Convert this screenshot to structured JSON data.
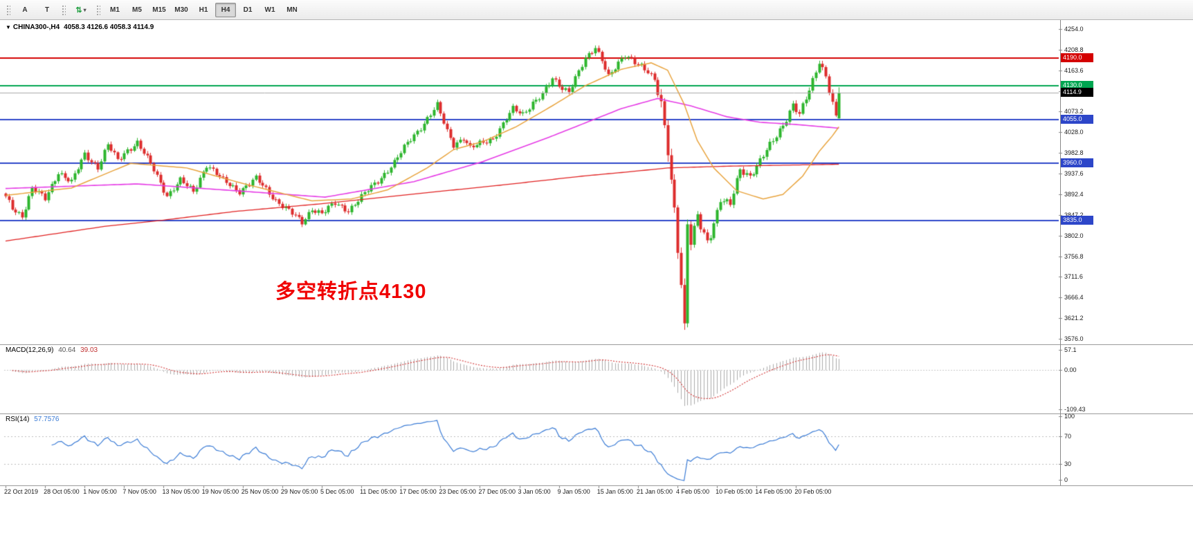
{
  "toolbar": {
    "tool_buttons": [
      {
        "label": "A"
      },
      {
        "label": "T"
      }
    ],
    "cycle_button": {
      "icon": "⇅",
      "caret": "▾"
    },
    "timeframes": [
      {
        "label": "M1",
        "active": false
      },
      {
        "label": "M5",
        "active": false
      },
      {
        "label": "M15",
        "active": false
      },
      {
        "label": "M30",
        "active": false
      },
      {
        "label": "H1",
        "active": false
      },
      {
        "label": "H4",
        "active": true
      },
      {
        "label": "D1",
        "active": false
      },
      {
        "label": "W1",
        "active": false
      },
      {
        "label": "MN",
        "active": false
      }
    ]
  },
  "chart": {
    "collapse_icon": "▼",
    "symbol": "CHINA300-,H4",
    "ohlc": "4058.3 4126.6 4058.3 4114.9",
    "annotation": {
      "text": "多空转折点4130",
      "color": "#f00000"
    },
    "price_axis": {
      "max": 4254.0,
      "min": 3576.0,
      "ticks": [
        "4254.0",
        "4208.8",
        "4163.6",
        "4118.4",
        "4073.2",
        "4028.0",
        "3982.8",
        "3937.6",
        "3892.4",
        "3847.2",
        "3802.0",
        "3756.8",
        "3711.6",
        "3666.4",
        "3621.2",
        "3576.0"
      ]
    },
    "levels": [
      {
        "price": 4190.0,
        "label": "4190.0",
        "color": "#d40000",
        "tag_bg": "#d40000"
      },
      {
        "price": 4130.0,
        "label": "4130.0",
        "color": "#00a651",
        "tag_bg": "#00a651"
      },
      {
        "price": 4055.0,
        "label": "4055.0",
        "color": "#2d46c9",
        "tag_bg": "#2d46c9"
      },
      {
        "price": 3960.0,
        "label": "3960.0",
        "color": "#2d46c9",
        "tag_bg": "#2d46c9"
      },
      {
        "price": 3835.0,
        "label": "3835.0",
        "color": "#2d46c9",
        "tag_bg": "#2d46c9"
      }
    ],
    "current_price": {
      "value": 4114.9,
      "label": "4114.9",
      "line_color": "#a8a8a8",
      "tag_bg": "#000000"
    },
    "last_candle": {
      "o": 4058.3,
      "h": 4126.6,
      "l": 4058.3,
      "c": 4114.9
    },
    "candle_count": 254,
    "colors": {
      "up": "#2db52d",
      "down": "#dd2c2c",
      "ma_red": "#e02020",
      "ma_magenta": "#e53ae5",
      "ma_orange": "#e8a33d"
    },
    "close_waypoints": [
      [
        0,
        3885
      ],
      [
        2,
        3862
      ],
      [
        5,
        3846
      ],
      [
        8,
        3905
      ],
      [
        12,
        3882
      ],
      [
        16,
        3942
      ],
      [
        20,
        3918
      ],
      [
        24,
        3980
      ],
      [
        28,
        3952
      ],
      [
        31,
        4000
      ],
      [
        34,
        3966
      ],
      [
        37,
        3990
      ],
      [
        40,
        4006
      ],
      [
        45,
        3945
      ],
      [
        49,
        3890
      ],
      [
        53,
        3922
      ],
      [
        57,
        3898
      ],
      [
        61,
        3958
      ],
      [
        66,
        3922
      ],
      [
        71,
        3900
      ],
      [
        76,
        3926
      ],
      [
        82,
        3880
      ],
      [
        86,
        3856
      ],
      [
        90,
        3830
      ],
      [
        93,
        3862
      ],
      [
        96,
        3850
      ],
      [
        100,
        3872
      ],
      [
        104,
        3858
      ],
      [
        108,
        3886
      ],
      [
        113,
        3922
      ],
      [
        118,
        3962
      ],
      [
        122,
        4004
      ],
      [
        126,
        4040
      ],
      [
        131,
        4086
      ],
      [
        134,
        4030
      ],
      [
        136,
        4002
      ],
      [
        139,
        4016
      ],
      [
        141,
        3992
      ],
      [
        145,
        4006
      ],
      [
        148,
        4016
      ],
      [
        151,
        4046
      ],
      [
        154,
        4078
      ],
      [
        157,
        4068
      ],
      [
        160,
        4094
      ],
      [
        163,
        4110
      ],
      [
        166,
        4144
      ],
      [
        169,
        4126
      ],
      [
        171,
        4120
      ],
      [
        174,
        4160
      ],
      [
        176,
        4186
      ],
      [
        179,
        4214
      ],
      [
        181,
        4190
      ],
      [
        183,
        4152
      ],
      [
        186,
        4176
      ],
      [
        188,
        4194
      ],
      [
        191,
        4184
      ],
      [
        193,
        4176
      ],
      [
        195,
        4160
      ],
      [
        197,
        4140
      ],
      [
        199,
        4082
      ],
      [
        201,
        3992
      ],
      [
        203,
        3862
      ],
      [
        205,
        3700
      ],
      [
        206,
        3598
      ],
      [
        207,
        3828
      ],
      [
        208,
        3782
      ],
      [
        210,
        3846
      ],
      [
        211,
        3820
      ],
      [
        213,
        3792
      ],
      [
        214,
        3806
      ],
      [
        217,
        3880
      ],
      [
        220,
        3868
      ],
      [
        223,
        3948
      ],
      [
        226,
        3934
      ],
      [
        229,
        3964
      ],
      [
        233,
        4010
      ],
      [
        236,
        4046
      ],
      [
        239,
        4088
      ],
      [
        241,
        4064
      ],
      [
        244,
        4120
      ],
      [
        247,
        4186
      ],
      [
        249,
        4152
      ],
      [
        252,
        4058
      ],
      [
        253,
        4114.9
      ]
    ],
    "volatility_zones": [
      [
        0,
        198,
        11
      ],
      [
        199,
        208,
        26
      ],
      [
        209,
        253,
        13
      ]
    ],
    "ma_red_waypoints": [
      [
        0,
        3790
      ],
      [
        30,
        3822
      ],
      [
        47,
        3835
      ],
      [
        70,
        3855
      ],
      [
        95,
        3871
      ],
      [
        124,
        3893
      ],
      [
        150,
        3912
      ],
      [
        175,
        3932
      ],
      [
        190,
        3942
      ],
      [
        201,
        3950
      ],
      [
        220,
        3954
      ],
      [
        253,
        3958
      ]
    ],
    "ma_magenta_waypoints": [
      [
        0,
        3905
      ],
      [
        40,
        3915
      ],
      [
        70,
        3900
      ],
      [
        97,
        3886
      ],
      [
        124,
        3920
      ],
      [
        145,
        3964
      ],
      [
        166,
        4020
      ],
      [
        187,
        4080
      ],
      [
        198,
        4102
      ],
      [
        208,
        4086
      ],
      [
        219,
        4062
      ],
      [
        229,
        4050
      ],
      [
        240,
        4045
      ],
      [
        253,
        4037
      ]
    ],
    "ma_orange_waypoints": [
      [
        0,
        3890
      ],
      [
        20,
        3906
      ],
      [
        38,
        3960
      ],
      [
        55,
        3950
      ],
      [
        72,
        3916
      ],
      [
        93,
        3878
      ],
      [
        105,
        3882
      ],
      [
        116,
        3902
      ],
      [
        128,
        3950
      ],
      [
        136,
        3990
      ],
      [
        145,
        4008
      ],
      [
        155,
        4040
      ],
      [
        166,
        4086
      ],
      [
        176,
        4130
      ],
      [
        187,
        4166
      ],
      [
        196,
        4180
      ],
      [
        201,
        4164
      ],
      [
        206,
        4090
      ],
      [
        210,
        4010
      ],
      [
        215,
        3950
      ],
      [
        222,
        3900
      ],
      [
        230,
        3882
      ],
      [
        236,
        3892
      ],
      [
        242,
        3932
      ],
      [
        247,
        3986
      ],
      [
        251,
        4020
      ],
      [
        253,
        4040
      ]
    ]
  },
  "macd": {
    "name": "MACD(12,26,9)",
    "main_value": "40.64",
    "signal_value": "39.03",
    "axis_labels": [
      {
        "text": "57.1",
        "value": 57.1
      },
      {
        "text": "0.00",
        "value": 0
      },
      {
        "text": "-109.43",
        "value": -109.43
      }
    ],
    "histogram_color": "#aaaaaa",
    "signal_color": "#d03030"
  },
  "rsi": {
    "name": "RSI(14)",
    "value": "57.7576",
    "axis_labels": [
      {
        "text": "100",
        "value": 100
      },
      {
        "text": "70",
        "value": 70
      },
      {
        "text": "30",
        "value": 30
      },
      {
        "text": "0",
        "value": 0
      }
    ],
    "levels": [
      70,
      30
    ],
    "line_color": "#3a7bd5",
    "level_color": "#bbbbbb"
  },
  "time_axis": {
    "labels": [
      "22 Oct 2019",
      "28 Oct 05:00",
      "1 Nov 05:00",
      "7 Nov 05:00",
      "13 Nov 05:00",
      "19 Nov 05:00",
      "25 Nov 05:00",
      "29 Nov 05:00",
      "5 Dec 05:00",
      "11 Dec 05:00",
      "17 Dec 05:00",
      "23 Dec 05:00",
      "27 Dec 05:00",
      "3 Jan 05:00",
      "9 Jan 05:00",
      "15 Jan 05:00",
      "21 Jan 05:00",
      "4 Feb 05:00",
      "10 Feb 05:00",
      "14 Feb 05:00",
      "20 Feb 05:00"
    ]
  }
}
